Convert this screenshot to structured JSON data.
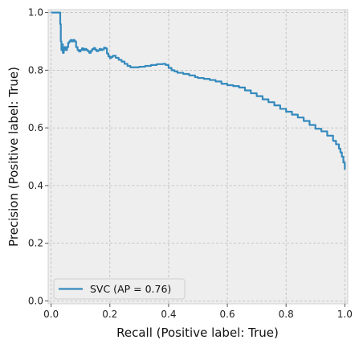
{
  "chart_data": {
    "type": "line",
    "title": "",
    "xlabel": "Recall (Positive label: True)",
    "ylabel": "Precision (Positive label: True)",
    "xlim": [
      -0.01,
      1.01
    ],
    "ylim": [
      -0.01,
      1.01
    ],
    "x_ticks": [
      0.0,
      0.2,
      0.4,
      0.6,
      0.8,
      1.0
    ],
    "y_ticks": [
      0.0,
      0.2,
      0.4,
      0.6,
      0.8,
      1.0
    ],
    "x_tick_labels": [
      "0.0",
      "0.2",
      "0.4",
      "0.6",
      "0.8",
      "1.0"
    ],
    "y_tick_labels": [
      "0.0",
      "0.2",
      "0.4",
      "0.6",
      "0.8",
      "1.0"
    ],
    "grid": true,
    "legend": {
      "placement": "lower-left",
      "entries": [
        {
          "label": "SVC (AP = 0.76)",
          "color": "#348abd"
        }
      ]
    },
    "series": [
      {
        "name": "SVC (AP = 0.76)",
        "color": "#348abd",
        "step": true,
        "points": [
          [
            0.0,
            1.0
          ],
          [
            0.03,
            1.0
          ],
          [
            0.031,
            0.96
          ],
          [
            0.033,
            0.9
          ],
          [
            0.035,
            0.87
          ],
          [
            0.038,
            0.89
          ],
          [
            0.04,
            0.86
          ],
          [
            0.043,
            0.87
          ],
          [
            0.046,
            0.88
          ],
          [
            0.05,
            0.87
          ],
          [
            0.054,
            0.88
          ],
          [
            0.058,
            0.895
          ],
          [
            0.062,
            0.9
          ],
          [
            0.066,
            0.905
          ],
          [
            0.07,
            0.9
          ],
          [
            0.075,
            0.905
          ],
          [
            0.08,
            0.9
          ],
          [
            0.085,
            0.88
          ],
          [
            0.09,
            0.87
          ],
          [
            0.095,
            0.865
          ],
          [
            0.1,
            0.87
          ],
          [
            0.105,
            0.876
          ],
          [
            0.11,
            0.87
          ],
          [
            0.115,
            0.874
          ],
          [
            0.12,
            0.87
          ],
          [
            0.125,
            0.866
          ],
          [
            0.13,
            0.86
          ],
          [
            0.135,
            0.867
          ],
          [
            0.14,
            0.873
          ],
          [
            0.145,
            0.877
          ],
          [
            0.15,
            0.871
          ],
          [
            0.155,
            0.866
          ],
          [
            0.16,
            0.869
          ],
          [
            0.165,
            0.874
          ],
          [
            0.17,
            0.87
          ],
          [
            0.175,
            0.872
          ],
          [
            0.18,
            0.878
          ],
          [
            0.185,
            0.876
          ],
          [
            0.19,
            0.858
          ],
          [
            0.195,
            0.848
          ],
          [
            0.2,
            0.842
          ],
          [
            0.205,
            0.846
          ],
          [
            0.21,
            0.85
          ],
          [
            0.22,
            0.843
          ],
          [
            0.23,
            0.836
          ],
          [
            0.24,
            0.83
          ],
          [
            0.25,
            0.822
          ],
          [
            0.26,
            0.815
          ],
          [
            0.27,
            0.81
          ],
          [
            0.28,
            0.81
          ],
          [
            0.3,
            0.812
          ],
          [
            0.32,
            0.815
          ],
          [
            0.34,
            0.818
          ],
          [
            0.36,
            0.821
          ],
          [
            0.38,
            0.822
          ],
          [
            0.39,
            0.818
          ],
          [
            0.4,
            0.808
          ],
          [
            0.41,
            0.8
          ],
          [
            0.42,
            0.796
          ],
          [
            0.43,
            0.791
          ],
          [
            0.45,
            0.787
          ],
          [
            0.47,
            0.782
          ],
          [
            0.49,
            0.776
          ],
          [
            0.5,
            0.773
          ],
          [
            0.52,
            0.77
          ],
          [
            0.54,
            0.766
          ],
          [
            0.56,
            0.761
          ],
          [
            0.58,
            0.753
          ],
          [
            0.6,
            0.748
          ],
          [
            0.62,
            0.745
          ],
          [
            0.64,
            0.74
          ],
          [
            0.66,
            0.73
          ],
          [
            0.68,
            0.72
          ],
          [
            0.7,
            0.71
          ],
          [
            0.72,
            0.699
          ],
          [
            0.74,
            0.689
          ],
          [
            0.76,
            0.678
          ],
          [
            0.78,
            0.666
          ],
          [
            0.8,
            0.656
          ],
          [
            0.82,
            0.646
          ],
          [
            0.84,
            0.636
          ],
          [
            0.86,
            0.624
          ],
          [
            0.88,
            0.61
          ],
          [
            0.9,
            0.597
          ],
          [
            0.92,
            0.588
          ],
          [
            0.94,
            0.573
          ],
          [
            0.96,
            0.555
          ],
          [
            0.97,
            0.543
          ],
          [
            0.98,
            0.528
          ],
          [
            0.985,
            0.515
          ],
          [
            0.99,
            0.5
          ],
          [
            0.995,
            0.48
          ],
          [
            1.0,
            0.455
          ]
        ]
      }
    ]
  }
}
